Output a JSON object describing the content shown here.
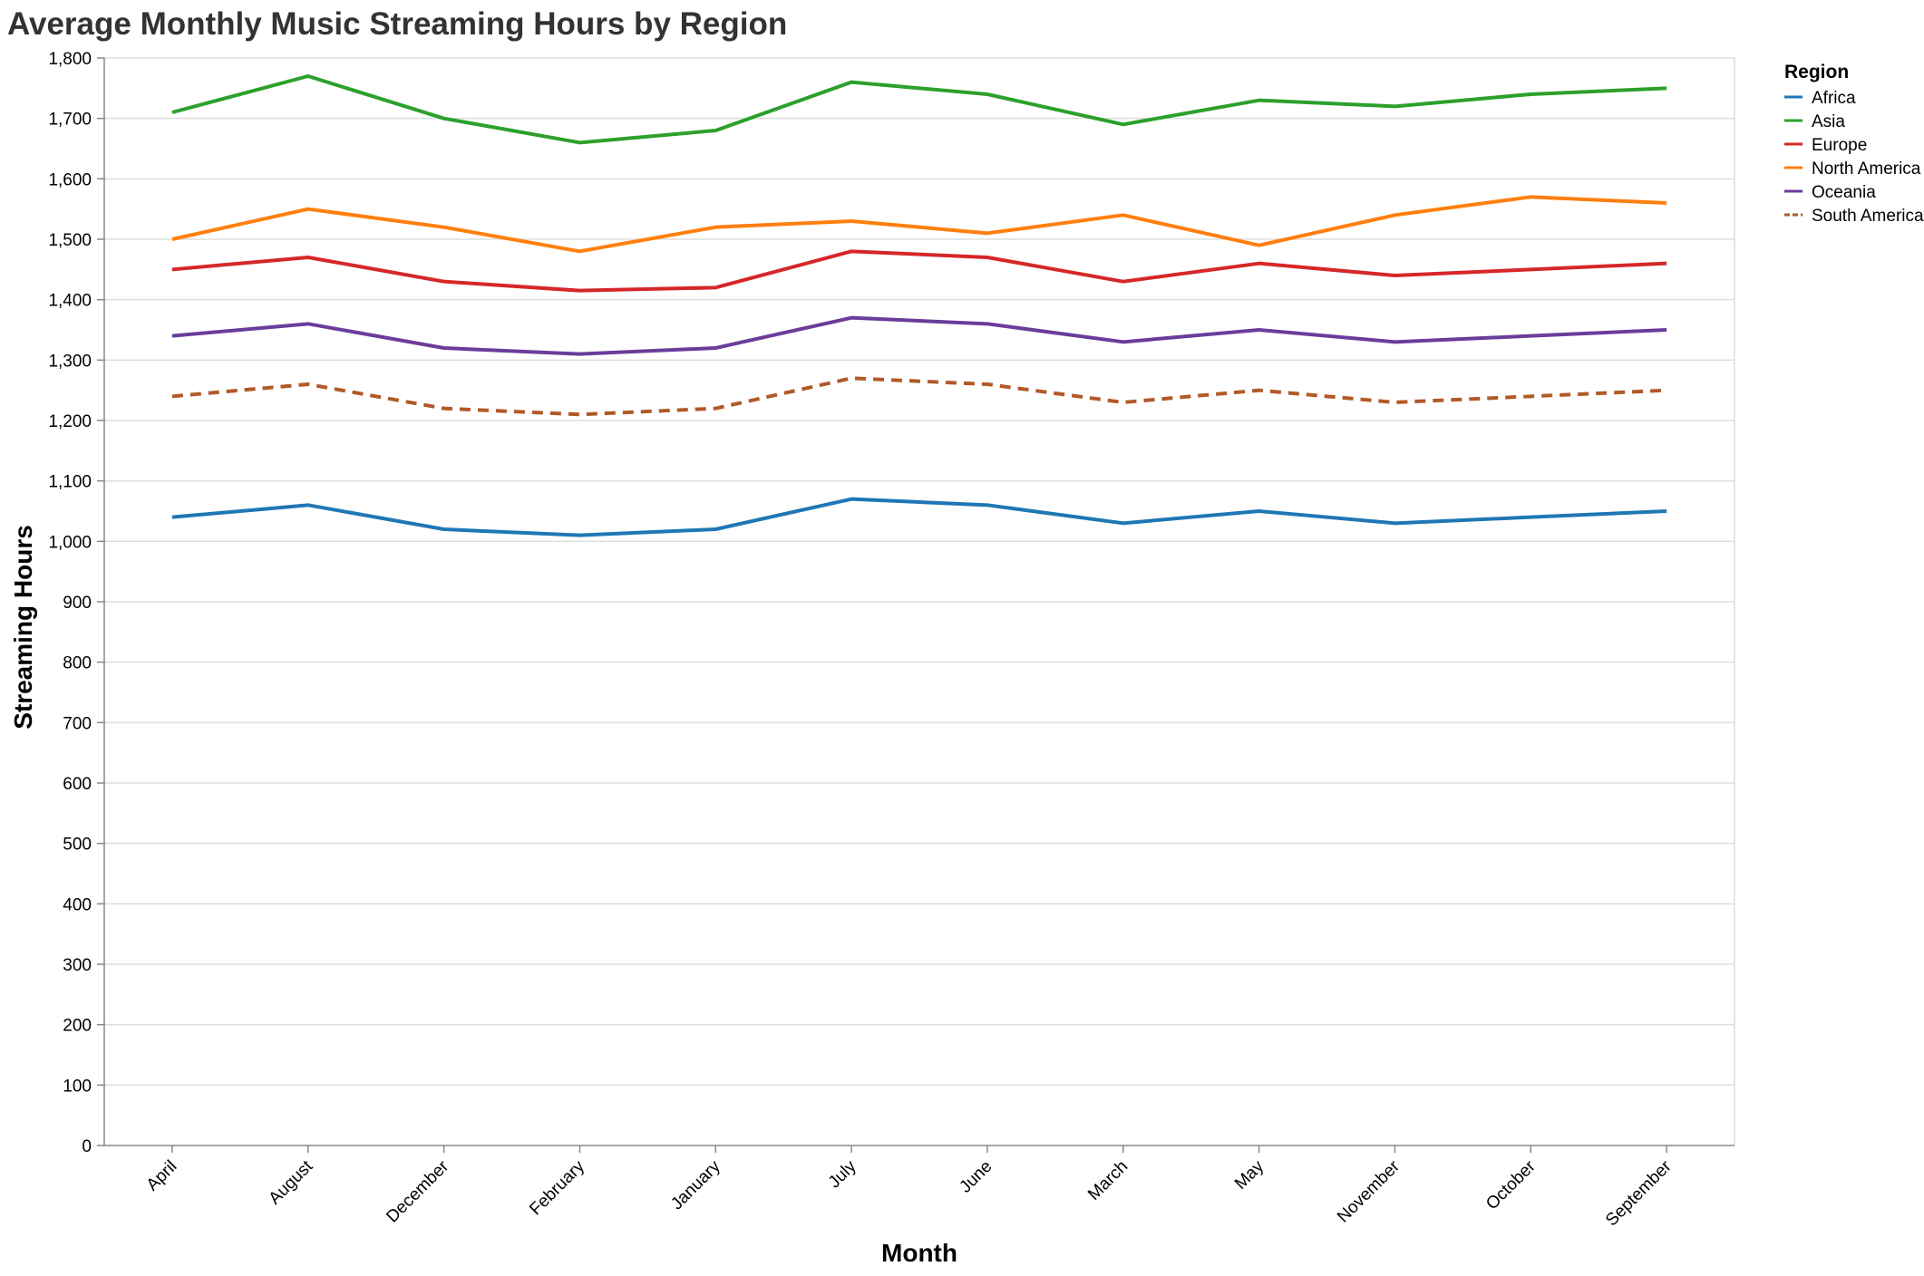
{
  "chart_data": {
    "type": "line",
    "title": "Average Monthly Music Streaming Hours by Region",
    "xlabel": "Month",
    "ylabel": "Streaming Hours",
    "categories": [
      "April",
      "August",
      "December",
      "February",
      "January",
      "July",
      "June",
      "March",
      "May",
      "November",
      "October",
      "September"
    ],
    "ylim": [
      0,
      1800
    ],
    "yticks": [
      0,
      100,
      200,
      300,
      400,
      500,
      600,
      700,
      800,
      900,
      1000,
      1100,
      1200,
      1300,
      1400,
      1500,
      1600,
      1700,
      1800
    ],
    "ytick_labels": [
      "0",
      "100",
      "200",
      "300",
      "400",
      "500",
      "600",
      "700",
      "800",
      "900",
      "1,000",
      "1,100",
      "1,200",
      "1,300",
      "1,400",
      "1,500",
      "1,600",
      "1,700",
      "1,800"
    ],
    "grid": true,
    "legend": {
      "title": "Region",
      "placement": "right"
    },
    "series": [
      {
        "name": "Africa",
        "color": "#1f77b4",
        "dash": false,
        "values": [
          1040,
          1060,
          1020,
          1010,
          1020,
          1070,
          1060,
          1030,
          1050,
          1030,
          1040,
          1050
        ]
      },
      {
        "name": "Asia",
        "color": "#2ca02c",
        "dash": false,
        "values": [
          1710,
          1770,
          1700,
          1660,
          1680,
          1760,
          1740,
          1690,
          1730,
          1720,
          1740,
          1750
        ]
      },
      {
        "name": "Europe",
        "color": "#d62728",
        "dash": false,
        "values": [
          1450,
          1470,
          1430,
          1415,
          1420,
          1480,
          1470,
          1430,
          1460,
          1440,
          1450,
          1460
        ]
      },
      {
        "name": "North America",
        "color": "#ff7f0e",
        "dash": false,
        "values": [
          1500,
          1550,
          1520,
          1480,
          1520,
          1530,
          1510,
          1540,
          1490,
          1540,
          1570,
          1560
        ]
      },
      {
        "name": "Oceania",
        "color": "#6a3d9a",
        "dash": false,
        "values": [
          1340,
          1360,
          1320,
          1310,
          1320,
          1370,
          1360,
          1330,
          1350,
          1330,
          1340,
          1350
        ]
      },
      {
        "name": "South America",
        "color": "#b15928",
        "dash": true,
        "values": [
          1240,
          1260,
          1220,
          1210,
          1220,
          1270,
          1260,
          1230,
          1250,
          1230,
          1240,
          1250
        ]
      }
    ]
  }
}
